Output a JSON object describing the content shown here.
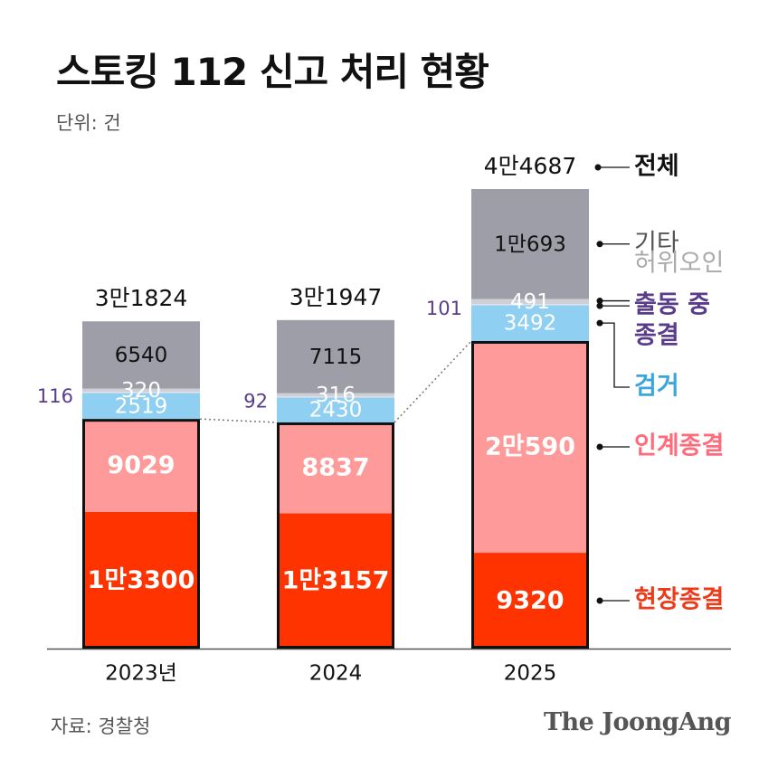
{
  "header": {
    "title": "스토킹 112 신고 처리 현황",
    "unit": "단위: 건"
  },
  "footer": {
    "source": "자료: 경찰청",
    "brand": "The JoongAng"
  },
  "colors": {
    "onsite": "#ff3300",
    "transfer": "#ff9a9a",
    "arrest": "#8fd0f2",
    "dispatch": "#e6e0ee",
    "false_report": "#cfcfd6",
    "other": "#9d9ea8",
    "dispatch_label": "#5a3d8a",
    "arrest_label": "#3aa6dd",
    "transfer_label": "#ff6b7a",
    "onsite_label": "#ef3a1a",
    "other_label": "#555555",
    "false_label": "#aaaaaa"
  },
  "chart_data": {
    "type": "bar",
    "stacked": true,
    "categories": [
      "2023년",
      "2024",
      "2025"
    ],
    "series": [
      {
        "name": "현장종결",
        "key": "onsite",
        "values": [
          13300,
          13157,
          9320
        ],
        "labels": [
          "1만3300",
          "1만3157",
          "9320"
        ]
      },
      {
        "name": "인계종결",
        "key": "transfer",
        "values": [
          9029,
          8837,
          20590
        ],
        "labels": [
          "9029",
          "8837",
          "2만590"
        ]
      },
      {
        "name": "검거",
        "key": "arrest",
        "values": [
          2519,
          2430,
          3492
        ],
        "labels": [
          "2519",
          "2430",
          "3492"
        ]
      },
      {
        "name": "출동 중 종결",
        "key": "dispatch",
        "values": [
          116,
          92,
          101
        ],
        "labels": [
          "116",
          "92",
          "101"
        ]
      },
      {
        "name": "허위오인",
        "key": "false_report",
        "values": [
          320,
          316,
          491
        ],
        "labels": [
          "320",
          "316",
          "491"
        ]
      },
      {
        "name": "기타",
        "key": "other",
        "values": [
          6540,
          7115,
          10693
        ],
        "labels": [
          "6540",
          "7115",
          "1만693"
        ]
      }
    ],
    "totals": [
      31824,
      31947,
      44687
    ],
    "total_labels": [
      "3만1824",
      "3만1947",
      "4만4687"
    ],
    "total_legend": "전체",
    "legend": [
      "전체",
      "기타",
      "허위오인",
      "출동 중",
      "종결",
      "검거",
      "인계종결",
      "현장종결"
    ],
    "legend_placement": "right",
    "ylim": [
      0,
      44687
    ],
    "grid": false
  }
}
